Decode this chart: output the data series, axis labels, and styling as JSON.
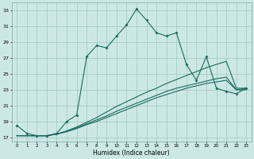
{
  "xlabel": "Humidex (Indice chaleur)",
  "bg_color": "#cce8e5",
  "grid_color": "#a0c8c5",
  "line_color": "#1a6b5e",
  "xlim": [
    -0.5,
    23.5
  ],
  "ylim": [
    16.5,
    34.0
  ],
  "xticks": [
    0,
    1,
    2,
    3,
    4,
    5,
    6,
    7,
    8,
    9,
    10,
    11,
    12,
    13,
    14,
    15,
    16,
    17,
    18,
    19,
    20,
    21,
    22,
    23
  ],
  "yticks": [
    17,
    19,
    21,
    23,
    25,
    27,
    29,
    31,
    33
  ],
  "line1_x": [
    0,
    1,
    2,
    3,
    4,
    5,
    6,
    7,
    8,
    9,
    10,
    11,
    12,
    13,
    14,
    15,
    16,
    17,
    18,
    19,
    20,
    21,
    22,
    23
  ],
  "line1_y": [
    18.5,
    17.5,
    17.2,
    17.2,
    17.5,
    19.0,
    19.8,
    27.2,
    28.6,
    28.3,
    29.8,
    31.2,
    33.2,
    31.8,
    30.2,
    29.8,
    30.2,
    26.2,
    24.2,
    27.2,
    23.2,
    22.8,
    22.5,
    23.2
  ],
  "line2_x": [
    0,
    1,
    2,
    3,
    4,
    5,
    6,
    7,
    8,
    9,
    10,
    11,
    12,
    13,
    14,
    15,
    16,
    17,
    18,
    19,
    20,
    21,
    22,
    23
  ],
  "line2_y": [
    17.2,
    17.2,
    17.2,
    17.2,
    17.4,
    17.8,
    18.3,
    18.9,
    19.5,
    20.2,
    20.9,
    21.5,
    22.1,
    22.7,
    23.2,
    23.8,
    24.3,
    24.8,
    25.3,
    25.8,
    26.2,
    26.6,
    23.2,
    23.2
  ],
  "line3_x": [
    0,
    1,
    2,
    3,
    4,
    5,
    6,
    7,
    8,
    9,
    10,
    11,
    12,
    13,
    14,
    15,
    16,
    17,
    18,
    19,
    20,
    21,
    22,
    23
  ],
  "line3_y": [
    17.2,
    17.2,
    17.2,
    17.2,
    17.4,
    17.8,
    18.2,
    18.7,
    19.2,
    19.7,
    20.3,
    20.8,
    21.3,
    21.8,
    22.3,
    22.8,
    23.2,
    23.5,
    23.8,
    24.1,
    24.4,
    24.6,
    23.0,
    23.2
  ],
  "line4_x": [
    0,
    1,
    2,
    3,
    4,
    5,
    6,
    7,
    8,
    9,
    10,
    11,
    12,
    13,
    14,
    15,
    16,
    17,
    18,
    19,
    20,
    21,
    22,
    23
  ],
  "line4_y": [
    17.2,
    17.2,
    17.2,
    17.2,
    17.4,
    17.7,
    18.1,
    18.6,
    19.0,
    19.5,
    20.0,
    20.5,
    21.0,
    21.5,
    22.0,
    22.4,
    22.8,
    23.2,
    23.5,
    23.8,
    24.0,
    24.2,
    23.0,
    23.0
  ]
}
